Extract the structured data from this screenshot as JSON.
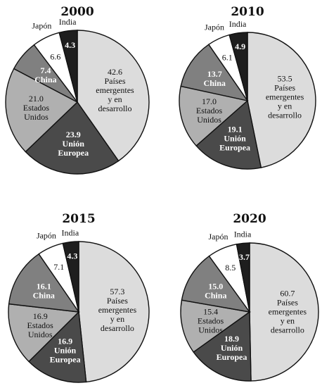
{
  "chart_data": [
    {
      "type": "pie",
      "title": "2000",
      "slices": [
        {
          "name": [
            "Países",
            "emergentes",
            "y en",
            "desarrollo"
          ],
          "value": 42.6,
          "color": "#dcdcdc"
        },
        {
          "name": [
            "Unión",
            "Europea"
          ],
          "value": 23.9,
          "color": "#4a4a4a"
        },
        {
          "name": [
            "Estados",
            "Unidos"
          ],
          "value": 21.0,
          "color": "#b0b0b0"
        },
        {
          "name": [
            "China"
          ],
          "value": 7.4,
          "color": "#808080"
        },
        {
          "name": [
            "Japón"
          ],
          "value": 6.6,
          "color": "#ffffff"
        },
        {
          "name": [
            "India"
          ],
          "value": 4.3,
          "color": "#1e1e1e"
        }
      ]
    },
    {
      "type": "pie",
      "title": "2010",
      "slices": [
        {
          "name": [
            "Países",
            "emergentes",
            "y en",
            "desarrollo"
          ],
          "value": 53.5,
          "color": "#dcdcdc"
        },
        {
          "name": [
            "Unión",
            "Europea"
          ],
          "value": 19.1,
          "color": "#4a4a4a"
        },
        {
          "name": [
            "Estados",
            "Unidos"
          ],
          "value": 17.0,
          "color": "#b0b0b0"
        },
        {
          "name": [
            "China"
          ],
          "value": 13.7,
          "color": "#808080"
        },
        {
          "name": [
            "Japón"
          ],
          "value": 6.1,
          "color": "#ffffff"
        },
        {
          "name": [
            "India"
          ],
          "value": 4.9,
          "color": "#1e1e1e"
        }
      ]
    },
    {
      "type": "pie",
      "title": "2015",
      "slices": [
        {
          "name": [
            "Países",
            "emergentes",
            "y en",
            "desarrollo"
          ],
          "value": 57.3,
          "color": "#dcdcdc"
        },
        {
          "name": [
            "Unión",
            "Europea"
          ],
          "value": 16.9,
          "color": "#4a4a4a"
        },
        {
          "name": [
            "Estados",
            "Unidos"
          ],
          "value": 16.9,
          "color": "#b0b0b0"
        },
        {
          "name": [
            "China"
          ],
          "value": 16.1,
          "color": "#808080"
        },
        {
          "name": [
            "Japón"
          ],
          "value": 7.1,
          "color": "#ffffff"
        },
        {
          "name": [
            "India"
          ],
          "value": 4.3,
          "color": "#1e1e1e"
        }
      ]
    },
    {
      "type": "pie",
      "title": "2020",
      "slices": [
        {
          "name": [
            "Países",
            "emergentes",
            "y en",
            "desarrollo"
          ],
          "value": 60.7,
          "color": "#dcdcdc"
        },
        {
          "name": [
            "Unión",
            "Europea"
          ],
          "value": 18.9,
          "color": "#4a4a4a"
        },
        {
          "name": [
            "Estados",
            "Unidos"
          ],
          "value": 15.4,
          "color": "#b0b0b0"
        },
        {
          "name": [
            "China"
          ],
          "value": 15.0,
          "color": "#808080"
        },
        {
          "name": [
            "Japón"
          ],
          "value": 8.5,
          "color": "#ffffff"
        },
        {
          "name": [
            "India"
          ],
          "value": 3.7,
          "color": "#1e1e1e"
        }
      ]
    }
  ]
}
